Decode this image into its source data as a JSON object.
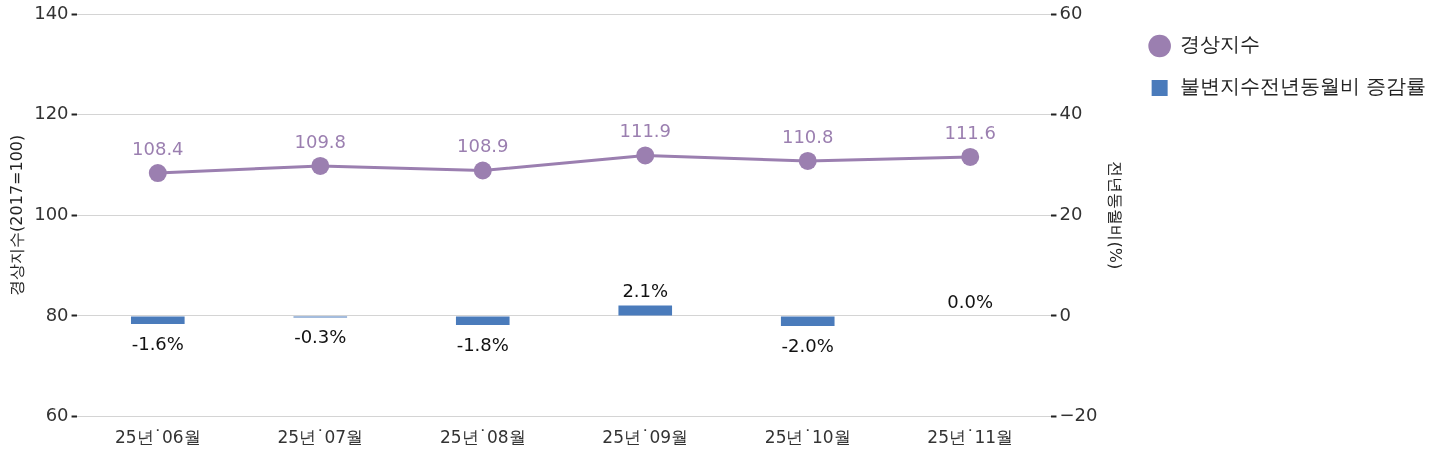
{
  "chart_data": {
    "type": "line",
    "categories": [
      "25년˙06월",
      "25년˙07월",
      "25년˙08월",
      "25년˙09월",
      "25년˙10월",
      "25년˙11월"
    ],
    "ylabel": "경상지수(2017=100)",
    "y2label": "전년동월비(%)",
    "ylim": [
      60,
      140
    ],
    "yticks": [
      60,
      80,
      100,
      120,
      140
    ],
    "y2lim": [
      -20,
      60
    ],
    "y2ticks": [
      {
        "value": -20,
        "label": "−20"
      },
      0,
      20,
      40,
      60
    ],
    "grid": "y",
    "legend": "top right",
    "marker": "circle",
    "line_style": "solid",
    "series": [
      {
        "name": "경상지수",
        "color": "#9b7fb0",
        "values": [
          108.4,
          109.8,
          108.9,
          111.9,
          110.8,
          111.6
        ],
        "value_labels": [
          "108.4",
          "109.8",
          "108.9",
          "111.9",
          "110.8",
          "111.6"
        ]
      },
      {
        "name": "불변지수전년동월비 증감률",
        "type": "bar",
        "axis": "y2",
        "color": "#4a7bbb",
        "values": [
          -1.6,
          -0.3,
          -1.8,
          2.1,
          -2.0,
          0.0
        ],
        "value_labels": [
          "-1.6%",
          "-0.3%",
          "-1.8%",
          "2.1%",
          "-2.0%",
          "0.0%"
        ]
      }
    ]
  }
}
